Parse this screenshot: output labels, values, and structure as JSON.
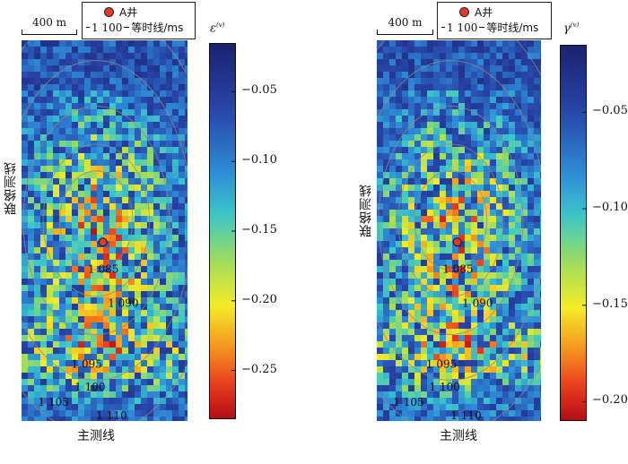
{
  "panels": [
    {
      "id": "epsilon",
      "scale_label": "400 m",
      "legend": {
        "well": "A井",
        "contour_value": "1 100",
        "contour_desc": "等时线/ms"
      },
      "colorbar": {
        "title_sym": "ε",
        "title_sup": "(v)",
        "ticks": [
          "−0.05",
          "−0.10",
          "−0.15",
          "−0.20",
          "−0.25"
        ],
        "tick_values": [
          -0.05,
          -0.1,
          -0.15,
          -0.2,
          -0.25
        ],
        "range": [
          -0.285,
          -0.015
        ]
      },
      "contour_labels": [
        "1 085",
        "1 090",
        "1 095",
        "1 100",
        "1 105",
        "1 110"
      ],
      "xlabel": "主测线",
      "ylabel": "联络测线"
    },
    {
      "id": "gamma",
      "scale_label": "400 m",
      "legend": {
        "well": "A井",
        "contour_value": "1 100",
        "contour_desc": "等时线/ms"
      },
      "colorbar": {
        "title_sym": "γ",
        "title_sup": "(v)",
        "ticks": [
          "−0.05",
          "−0.10",
          "−0.15",
          "−0.20"
        ],
        "tick_values": [
          -0.05,
          -0.1,
          -0.15,
          -0.2
        ],
        "range": [
          -0.21,
          -0.015
        ]
      },
      "contour_labels": [
        "1 085",
        "1 090",
        "1 095",
        "1 100",
        "1 105",
        "1 110"
      ],
      "xlabel": "主测线",
      "ylabel": "联络测线"
    }
  ],
  "colors": {
    "well_marker": "#e03a2f",
    "contour": "#8a8a8a",
    "map_background": "#2a3f94"
  }
}
